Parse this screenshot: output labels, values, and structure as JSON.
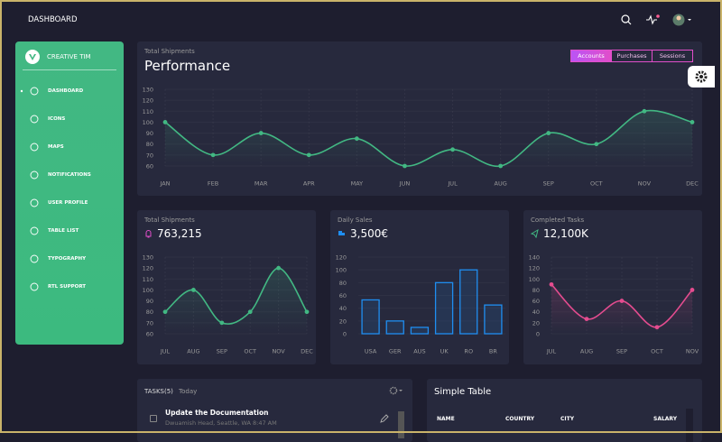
{
  "navbar": {
    "title": "DASHBOARD"
  },
  "sidebar": {
    "brand": "CREATIVE TIM",
    "items": [
      "DASHBOARD",
      "ICONS",
      "MAPS",
      "NOTIFICATIONS",
      "USER PROFILE",
      "TABLE LIST",
      "TYPOGRAPHY",
      "RTL SUPPORT"
    ]
  },
  "tabs": [
    "Accounts",
    "Purchases",
    "Sessions"
  ],
  "chart_data": [
    {
      "type": "line",
      "subtitle": "Total Shipments",
      "title": "Performance",
      "categories": [
        "JAN",
        "FEB",
        "MAR",
        "APR",
        "MAY",
        "JUN",
        "JUL",
        "AUG",
        "SEP",
        "OCT",
        "NOV",
        "DEC"
      ],
      "values": [
        100,
        70,
        90,
        70,
        85,
        60,
        75,
        60,
        90,
        80,
        110,
        100
      ],
      "color": "#42b883",
      "ylim": [
        60,
        130
      ],
      "yticks": [
        60,
        70,
        80,
        90,
        100,
        110,
        120,
        130
      ],
      "grid": true
    },
    {
      "type": "line",
      "subtitle": "Total Shipments",
      "title": "763,215",
      "categories": [
        "JUL",
        "AUG",
        "SEP",
        "OCT",
        "NOV",
        "DEC"
      ],
      "values": [
        80,
        100,
        70,
        80,
        120,
        80
      ],
      "color": "#42b883",
      "ylim": [
        60,
        130
      ],
      "yticks": [
        60,
        70,
        80,
        90,
        100,
        110,
        120,
        130
      ],
      "grid": true
    },
    {
      "type": "bar",
      "subtitle": "Daily Sales",
      "title": "3,500€",
      "categories": [
        "USA",
        "GER",
        "AUS",
        "UK",
        "RO",
        "BR"
      ],
      "values": [
        53,
        20,
        10,
        80,
        100,
        45
      ],
      "color": "#1f8ef1",
      "ylim": [
        0,
        120
      ],
      "yticks": [
        0,
        20,
        40,
        60,
        80,
        100,
        120
      ],
      "grid": true
    },
    {
      "type": "line",
      "subtitle": "Completed Tasks",
      "title": "12,100K",
      "categories": [
        "JUL",
        "AUG",
        "SEP",
        "OCT",
        "NOV"
      ],
      "values": [
        90,
        27,
        60,
        12,
        80
      ],
      "color": "#e44c8f",
      "ylim": [
        0,
        140
      ],
      "yticks": [
        0,
        20,
        40,
        60,
        80,
        100,
        120,
        140
      ],
      "grid": true
    }
  ],
  "tasks": {
    "title": "TASKS(5)",
    "filter": "Today",
    "items": [
      {
        "title": "Update the Documentation",
        "description": "Dwuamish Head, Seattle, WA 8:47 AM"
      }
    ]
  },
  "table": {
    "title": "Simple Table",
    "columns": [
      "NAME",
      "COUNTRY",
      "CITY",
      "SALARY"
    ]
  }
}
